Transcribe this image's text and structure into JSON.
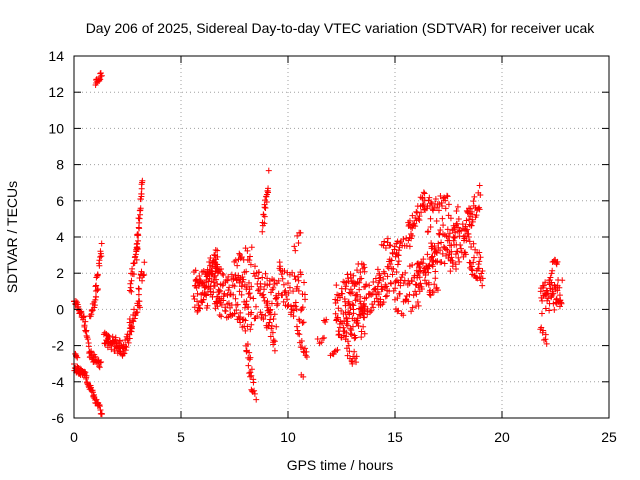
{
  "chart_data": {
    "type": "scatter",
    "title": "Day 206 of 2025, Sidereal Day-to-day VTEC variation (SDTVAR) for receiver ucak",
    "xlabel": "GPS time / hours",
    "ylabel": "SDTVAR / TECUs",
    "xlim": [
      0,
      25
    ],
    "ylim": [
      -6,
      14
    ],
    "xticks": [
      "0",
      "5",
      "10",
      "15",
      "20",
      "25"
    ],
    "yticks": [
      "-6",
      "-4",
      "-2",
      "0",
      "2",
      "4",
      "6",
      "8",
      "10",
      "12",
      "14"
    ],
    "grid": true,
    "marker": "+",
    "colors": {
      "series": "#ff0000"
    },
    "segments": [
      {
        "x0": 0.0,
        "x1": 0.5,
        "y0": -3.2,
        "y1": -3.6,
        "n": 25,
        "jitter": 0.2
      },
      {
        "x0": 0.05,
        "x1": 0.2,
        "y0": -2.4,
        "y1": -3.2,
        "n": 8,
        "jitter": 0.2
      },
      {
        "x0": 0.5,
        "x1": 1.3,
        "y0": -3.6,
        "y1": -5.8,
        "n": 40,
        "jitter": 0.2
      },
      {
        "x0": 0.0,
        "x1": 0.45,
        "y0": 0.6,
        "y1": -0.5,
        "n": 20,
        "jitter": 0.2
      },
      {
        "x0": 0.45,
        "x1": 0.75,
        "y0": -0.5,
        "y1": -2.4,
        "n": 15,
        "jitter": 0.3
      },
      {
        "x0": 0.75,
        "x1": 1.25,
        "y0": -2.5,
        "y1": -3.0,
        "n": 25,
        "jitter": 0.25
      },
      {
        "x0": 0.75,
        "x1": 1.1,
        "y0": -0.5,
        "y1": 1.0,
        "n": 15,
        "jitter": 0.3
      },
      {
        "x0": 1.0,
        "x1": 1.3,
        "y0": 1.0,
        "y1": 3.5,
        "n": 15,
        "jitter": 0.4
      },
      {
        "x0": 1.0,
        "x1": 1.3,
        "y0": 12.5,
        "y1": 13.0,
        "n": 14,
        "jitter": 0.15
      },
      {
        "x0": 1.4,
        "x1": 2.3,
        "y0": -1.6,
        "y1": -2.2,
        "n": 55,
        "jitter": 0.4
      },
      {
        "x0": 2.3,
        "x1": 2.7,
        "y0": -2.2,
        "y1": -1.2,
        "n": 20,
        "jitter": 0.4
      },
      {
        "x0": 2.6,
        "x1": 3.1,
        "y0": -1.0,
        "y1": 0.5,
        "n": 20,
        "jitter": 0.4
      },
      {
        "x0": 2.6,
        "x1": 3.0,
        "y0": 1.0,
        "y1": 3.5,
        "n": 20,
        "jitter": 0.5
      },
      {
        "x0": 2.9,
        "x1": 3.2,
        "y0": 3.0,
        "y1": 7.2,
        "n": 28,
        "jitter": 0.4
      },
      {
        "x0": 3.0,
        "x1": 3.3,
        "y0": 1.0,
        "y1": 2.4,
        "n": 12,
        "jitter": 0.4
      },
      {
        "x0": 5.6,
        "x1": 6.8,
        "y0": 1.0,
        "y1": 1.5,
        "n": 90,
        "jitter": 1.2
      },
      {
        "x0": 6.2,
        "x1": 6.7,
        "y0": 2.0,
        "y1": 3.4,
        "n": 20,
        "jitter": 0.5
      },
      {
        "x0": 6.6,
        "x1": 8.3,
        "y0": 1.0,
        "y1": 0.2,
        "n": 110,
        "jitter": 1.4
      },
      {
        "x0": 7.5,
        "x1": 8.3,
        "y0": 2.0,
        "y1": 3.2,
        "n": 20,
        "jitter": 0.8
      },
      {
        "x0": 8.0,
        "x1": 8.4,
        "y0": -1.5,
        "y1": -4.6,
        "n": 18,
        "jitter": 0.6
      },
      {
        "x0": 8.2,
        "x1": 8.5,
        "y0": -2.4,
        "y1": -4.8,
        "n": 6,
        "jitter": 0.4
      },
      {
        "x0": 8.4,
        "x1": 9.5,
        "y0": 1.0,
        "y1": 0.0,
        "n": 60,
        "jitter": 1.5
      },
      {
        "x0": 8.8,
        "x1": 9.1,
        "y0": 4.5,
        "y1": 7.2,
        "n": 20,
        "jitter": 0.5
      },
      {
        "x0": 9.0,
        "x1": 9.4,
        "y0": 0.0,
        "y1": -1.8,
        "n": 15,
        "jitter": 0.6
      },
      {
        "x0": 9.5,
        "x1": 10.8,
        "y0": 1.5,
        "y1": 0.5,
        "n": 60,
        "jitter": 1.4
      },
      {
        "x0": 10.3,
        "x1": 10.6,
        "y0": 3.5,
        "y1": 4.0,
        "n": 6,
        "jitter": 0.4
      },
      {
        "x0": 10.4,
        "x1": 10.9,
        "y0": -1.2,
        "y1": -2.5,
        "n": 14,
        "jitter": 0.4
      },
      {
        "x0": 10.6,
        "x1": 10.7,
        "y0": -3.5,
        "y1": -3.7,
        "n": 2,
        "jitter": 0.2
      },
      {
        "x0": 11.4,
        "x1": 11.7,
        "y0": -1.8,
        "y1": -1.5,
        "n": 5,
        "jitter": 0.2
      },
      {
        "x0": 11.7,
        "x1": 11.8,
        "y0": -0.6,
        "y1": -0.6,
        "n": 3,
        "jitter": 0.1
      },
      {
        "x0": 12.0,
        "x1": 12.3,
        "y0": -2.5,
        "y1": -2.3,
        "n": 6,
        "jitter": 0.15
      },
      {
        "x0": 12.2,
        "x1": 13.6,
        "y0": 0.0,
        "y1": -0.5,
        "n": 100,
        "jitter": 1.5
      },
      {
        "x0": 12.6,
        "x1": 13.6,
        "y0": 1.0,
        "y1": 2.4,
        "n": 30,
        "jitter": 0.7
      },
      {
        "x0": 12.7,
        "x1": 13.2,
        "y0": -2.0,
        "y1": -3.0,
        "n": 15,
        "jitter": 0.5
      },
      {
        "x0": 13.5,
        "x1": 14.3,
        "y0": 0.5,
        "y1": 0.8,
        "n": 35,
        "jitter": 1.0
      },
      {
        "x0": 14.2,
        "x1": 15.2,
        "y0": 1.0,
        "y1": 2.5,
        "n": 50,
        "jitter": 1.2
      },
      {
        "x0": 14.4,
        "x1": 14.8,
        "y0": 3.5,
        "y1": 3.8,
        "n": 8,
        "jitter": 0.3
      },
      {
        "x0": 15.0,
        "x1": 15.8,
        "y0": 3.4,
        "y1": 3.8,
        "n": 15,
        "jitter": 0.3
      },
      {
        "x0": 15.0,
        "x1": 16.2,
        "y0": 0.5,
        "y1": 1.5,
        "n": 50,
        "jitter": 1.3
      },
      {
        "x0": 15.6,
        "x1": 16.4,
        "y0": 4.5,
        "y1": 6.0,
        "n": 30,
        "jitter": 0.7
      },
      {
        "x0": 16.0,
        "x1": 17.0,
        "y0": 1.5,
        "y1": 2.5,
        "n": 50,
        "jitter": 1.5
      },
      {
        "x0": 16.3,
        "x1": 17.5,
        "y0": 5.8,
        "y1": 5.9,
        "n": 30,
        "jitter": 0.4
      },
      {
        "x0": 16.5,
        "x1": 18.0,
        "y0": 3.5,
        "y1": 4.2,
        "n": 70,
        "jitter": 1.5
      },
      {
        "x0": 17.5,
        "x1": 18.6,
        "y0": 3.0,
        "y1": 4.5,
        "n": 45,
        "jitter": 1.3
      },
      {
        "x0": 18.2,
        "x1": 19.0,
        "y0": 4.5,
        "y1": 6.3,
        "n": 30,
        "jitter": 0.8
      },
      {
        "x0": 18.5,
        "x1": 19.1,
        "y0": 3.0,
        "y1": 2.0,
        "n": 30,
        "jitter": 1.0
      },
      {
        "x0": 21.8,
        "x1": 22.8,
        "y0": 0.6,
        "y1": 0.9,
        "n": 55,
        "jitter": 0.9
      },
      {
        "x0": 21.8,
        "x1": 22.1,
        "y0": -1.0,
        "y1": -1.8,
        "n": 8,
        "jitter": 0.3
      },
      {
        "x0": 22.2,
        "x1": 22.6,
        "y0": 1.8,
        "y1": 3.0,
        "n": 12,
        "jitter": 0.4
      }
    ]
  }
}
